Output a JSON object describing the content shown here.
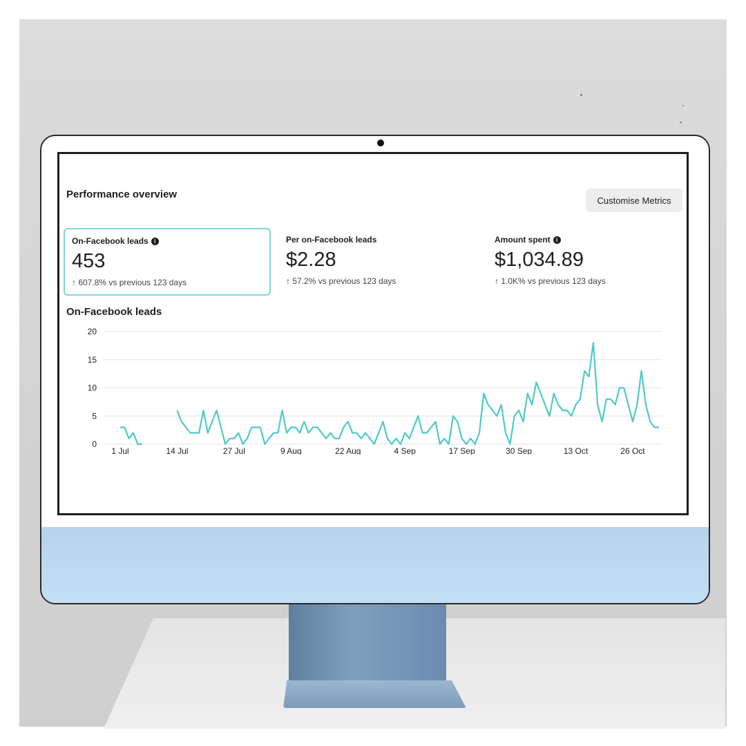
{
  "header": {
    "title": "Performance overview",
    "customise_label": "Customise Metrics"
  },
  "metrics": [
    {
      "label": "On-Facebook leads",
      "info": true,
      "value": "453",
      "change": "↑ 607.8% vs previous 123 days",
      "selected": true
    },
    {
      "label": "Per on-Facebook leads",
      "info": false,
      "value": "$2.28",
      "change": "↑ 57.2% vs previous 123 days",
      "selected": false
    },
    {
      "label": "Amount spent",
      "info": true,
      "value": "$1,034.89",
      "change": "↑ 1.0K% vs previous 123 days",
      "selected": false
    }
  ],
  "icons": {
    "info": "info-icon"
  },
  "colors": {
    "line": "#4fc9c9",
    "selected_border": "#7fd4dc",
    "grid": "#e3e3e3"
  },
  "chart_data": {
    "type": "line",
    "title": "On-Facebook leads",
    "xlabel": "",
    "ylabel": "",
    "ylim": [
      0,
      20
    ],
    "y_ticks": [
      0,
      5,
      10,
      15,
      20
    ],
    "x_tick_labels": [
      "1 Jul",
      "14 Jul",
      "27 Jul",
      "9 Aug",
      "22 Aug",
      "4 Sep",
      "17 Sep",
      "30 Sep",
      "13 Oct",
      "26 Oct"
    ],
    "series": [
      {
        "segments": [
          {
            "start_day": 0,
            "values": [
              3,
              3,
              1,
              2,
              0,
              0
            ]
          },
          {
            "start_day": 13,
            "values": [
              6,
              4,
              3,
              2,
              2,
              2,
              6,
              2,
              4,
              6,
              3,
              0,
              1,
              1,
              2,
              0,
              1,
              3,
              3,
              3,
              0,
              1,
              2,
              2,
              6,
              2,
              3,
              3,
              2,
              4,
              2,
              3,
              3,
              2,
              1,
              2,
              1,
              1,
              3,
              4,
              2,
              2,
              1,
              2,
              1,
              0,
              2,
              4,
              1,
              0,
              1,
              0,
              2,
              1,
              3,
              5,
              2,
              2,
              3,
              4,
              0,
              1,
              0,
              5,
              4,
              1,
              0,
              1,
              0,
              2,
              9,
              7,
              6,
              5,
              7,
              2,
              0,
              5,
              6,
              4,
              9,
              7,
              11,
              9,
              7,
              5,
              9,
              7,
              6,
              6,
              5,
              7,
              8,
              13,
              12,
              18,
              7,
              4,
              8,
              8,
              7,
              10,
              10,
              7,
              4,
              7,
              13,
              7,
              4,
              3,
              3
            ]
          }
        ]
      }
    ]
  }
}
